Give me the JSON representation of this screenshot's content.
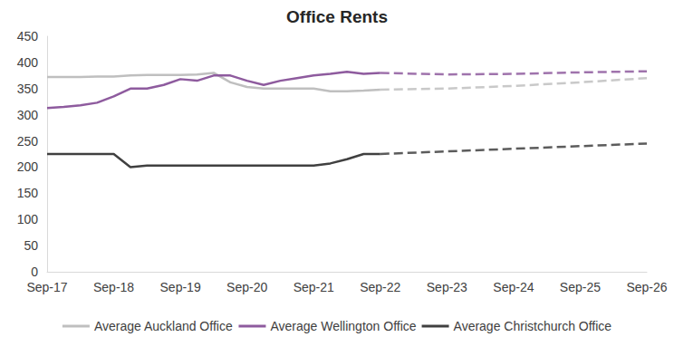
{
  "chart_data": {
    "type": "line",
    "title": "Office Rents",
    "categories": [
      "Sep-17",
      null,
      null,
      null,
      "Sep-18",
      null,
      null,
      null,
      "Sep-19",
      null,
      null,
      null,
      "Sep-20",
      null,
      null,
      null,
      "Sep-21",
      null,
      null,
      null,
      "Sep-22",
      null,
      null,
      null,
      "Sep-23",
      null,
      null,
      null,
      "Sep-24",
      null,
      null,
      null,
      "Sep-25",
      null,
      null,
      null,
      "Sep-26"
    ],
    "series": [
      {
        "name": "Average Auckland Office",
        "color": "#bfbfbf",
        "values": [
          372,
          372,
          372,
          373,
          373,
          375,
          376,
          376,
          376,
          377,
          380,
          362,
          353,
          350,
          350,
          350,
          350,
          345,
          345,
          346,
          348,
          null,
          null,
          null,
          null,
          null,
          null,
          null,
          null,
          null,
          null,
          null,
          null,
          null,
          null,
          null,
          null
        ],
        "forecast_values": [
          null,
          null,
          null,
          null,
          null,
          null,
          null,
          null,
          null,
          null,
          null,
          null,
          null,
          null,
          null,
          null,
          null,
          null,
          null,
          null,
          348,
          null,
          null,
          null,
          350,
          null,
          null,
          null,
          355,
          null,
          null,
          null,
          362,
          null,
          null,
          null,
          370
        ]
      },
      {
        "name": "Average Wellington Office",
        "color": "#8e5b9e",
        "values": [
          313,
          315,
          318,
          323,
          335,
          350,
          350,
          357,
          368,
          365,
          375,
          375,
          365,
          357,
          365,
          370,
          375,
          378,
          382,
          378,
          380,
          null,
          null,
          null,
          null,
          null,
          null,
          null,
          null,
          null,
          null,
          null,
          null,
          null,
          null,
          null,
          null
        ],
        "forecast_values": [
          null,
          null,
          null,
          null,
          null,
          null,
          null,
          null,
          null,
          null,
          null,
          null,
          null,
          null,
          null,
          null,
          null,
          null,
          null,
          null,
          380,
          null,
          null,
          null,
          377,
          null,
          null,
          null,
          378,
          null,
          null,
          null,
          381,
          null,
          null,
          null,
          383
        ]
      },
      {
        "name": "Average Christchurch Office",
        "color": "#404040",
        "values": [
          225,
          225,
          225,
          225,
          225,
          200,
          203,
          203,
          203,
          203,
          203,
          203,
          203,
          203,
          203,
          203,
          203,
          207,
          215,
          225,
          225,
          null,
          null,
          null,
          null,
          null,
          null,
          null,
          null,
          null,
          null,
          null,
          null,
          null,
          null,
          null,
          null
        ],
        "forecast_values": [
          null,
          null,
          null,
          null,
          null,
          null,
          null,
          null,
          null,
          null,
          null,
          null,
          null,
          null,
          null,
          null,
          null,
          null,
          null,
          null,
          225,
          null,
          null,
          null,
          230,
          null,
          null,
          null,
          235,
          null,
          null,
          null,
          240,
          null,
          null,
          null,
          245
        ]
      }
    ],
    "ylim": [
      0,
      450
    ],
    "yticks": [
      0,
      50,
      100,
      150,
      200,
      250,
      300,
      350,
      400,
      450
    ],
    "grid": false,
    "legend": "bottom"
  }
}
